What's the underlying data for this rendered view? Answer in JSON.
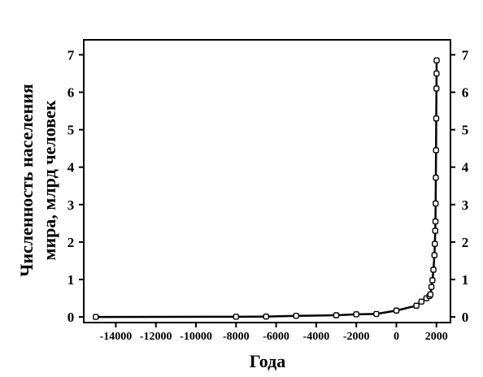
{
  "chart_data": {
    "type": "line",
    "title": "",
    "xlabel": "Года",
    "ylabel_line1": "Численность населения",
    "ylabel_line2": "мира, млрд человек",
    "xlim": [
      -15600,
      2700
    ],
    "ylim": [
      -0.15,
      7.4
    ],
    "x_ticks": [
      -14000,
      -12000,
      -10000,
      -8000,
      -6000,
      -4000,
      -2000,
      0,
      2000
    ],
    "x_tick_labels": [
      "-14000",
      "-12000",
      "-10000",
      "-8000",
      "-6000",
      "-4000",
      "-2000",
      "0",
      "2000"
    ],
    "y_ticks": [
      0,
      1,
      2,
      3,
      4,
      5,
      6,
      7
    ],
    "y_tick_labels": [
      "0",
      "1",
      "2",
      "3",
      "4",
      "5",
      "6",
      "7"
    ],
    "grid": false,
    "legend": "none",
    "marker": "open-square",
    "series": [
      {
        "x": [
          -15000,
          -8000,
          -6500,
          -5000,
          -3000,
          -2000,
          -1000,
          0,
          1000,
          1250,
          1500,
          1650,
          1700,
          1750,
          1800,
          1850,
          1900,
          1920,
          1940,
          1950,
          1960,
          1970,
          1980,
          1990,
          2000,
          2005,
          2010
        ],
        "y": [
          0.0,
          0.005,
          0.01,
          0.03,
          0.045,
          0.07,
          0.08,
          0.17,
          0.3,
          0.41,
          0.5,
          0.56,
          0.6,
          0.8,
          0.98,
          1.26,
          1.65,
          1.95,
          2.3,
          2.55,
          3.03,
          3.72,
          4.45,
          5.3,
          6.1,
          6.5,
          6.85
        ]
      }
    ]
  }
}
